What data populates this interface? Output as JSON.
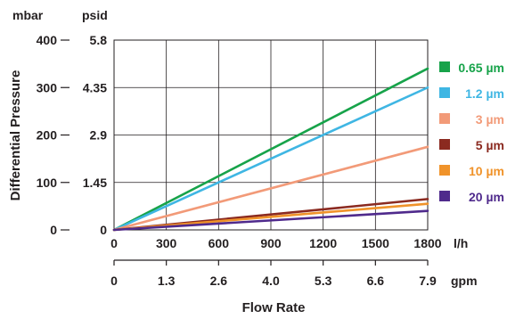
{
  "chart_data": {
    "type": "line",
    "title": "",
    "xlabel": "Flow Rate",
    "ylabel": "Differential Pressure",
    "units": {
      "y_primary": "mbar",
      "y_secondary": "psid",
      "x_primary": "l/h",
      "x_secondary": "gpm"
    },
    "x_range": [
      0,
      1800
    ],
    "y_range": [
      0,
      400
    ],
    "x_ticks": [
      0,
      300,
      600,
      900,
      1200,
      1500,
      1800
    ],
    "x_tick_labels": [
      "0",
      "300",
      "600",
      "900",
      "1200",
      "1500",
      "1800"
    ],
    "x2_tick_labels": [
      "0",
      "1.3",
      "2.6",
      "4.0",
      "5.3",
      "6.6",
      "7.9"
    ],
    "y_ticks": [
      0,
      100,
      200,
      300,
      400
    ],
    "y_tick_labels": [
      "0",
      "100",
      "200",
      "300",
      "400"
    ],
    "y2_tick_labels": [
      "0",
      "1.45",
      "2.9",
      "4.35",
      "5.8"
    ],
    "grid": true,
    "legend_position": "right",
    "series": [
      {
        "name": "0.65 µm",
        "color": "#17a34a",
        "x": [
          0,
          1800
        ],
        "y": [
          0,
          340
        ]
      },
      {
        "name": "1.2 µm",
        "color": "#3fb6e3",
        "x": [
          0,
          1800
        ],
        "y": [
          0,
          300
        ]
      },
      {
        "name": "3 µm",
        "color": "#f29a78",
        "x": [
          0,
          1800
        ],
        "y": [
          0,
          175
        ]
      },
      {
        "name": "5 µm",
        "color": "#8b2a20",
        "x": [
          0,
          1800
        ],
        "y": [
          0,
          65
        ]
      },
      {
        "name": "10 µm",
        "color": "#f0932a",
        "x": [
          0,
          1800
        ],
        "y": [
          0,
          55
        ]
      },
      {
        "name": "20 µm",
        "color": "#4f2a8c",
        "x": [
          0,
          1800
        ],
        "y": [
          0,
          40
        ]
      }
    ]
  }
}
